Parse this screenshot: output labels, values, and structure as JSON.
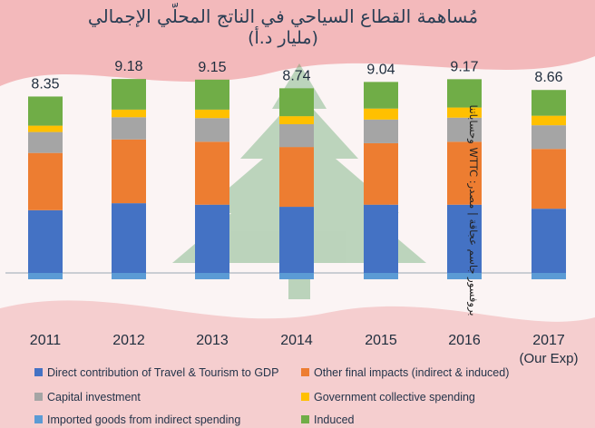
{
  "title_line1": "مُساهمة القطاع السياحي في الناتج المحلّي الإجمالي",
  "title_line2": "(مليار د.أ)",
  "credit": "بروفسور جاسم عجاقة | مصدر: WTTC وحساباتنا",
  "colors": {
    "direct": "#4472c4",
    "other": "#ed7d31",
    "capital": "#a5a5a5",
    "government": "#ffc000",
    "imported": "#5b9bd5",
    "induced": "#70ad47",
    "flag_red": "#e01f26",
    "cedar_green": "#2a8a3a"
  },
  "chart_data": {
    "type": "bar",
    "stacked": true,
    "categories": [
      "2011",
      "2012",
      "2013",
      "2014",
      "2015",
      "2016",
      "2017"
    ],
    "category_sublabels": [
      "",
      "",
      "",
      "",
      "",
      "",
      "(Our Exp)"
    ],
    "totals": [
      "8.35",
      "9.18",
      "9.15",
      "8.74",
      "9.04",
      "9.17",
      "8.66"
    ],
    "series": [
      {
        "key": "imported",
        "name": "Imported goods from indirect spending",
        "values": [
          -0.3,
          -0.3,
          -0.3,
          -0.3,
          -0.3,
          -0.3,
          -0.3
        ]
      },
      {
        "key": "direct",
        "name": "Direct contribution of Travel & Tourism to GDP",
        "values": [
          2.97,
          3.3,
          3.23,
          3.13,
          3.23,
          3.23,
          3.04
        ]
      },
      {
        "key": "other",
        "name": "Other final impacts (indirect & induced)",
        "values": [
          2.71,
          3.02,
          2.98,
          2.83,
          2.91,
          2.98,
          2.83
        ]
      },
      {
        "key": "capital",
        "name": "Capital investment",
        "values": [
          0.99,
          1.05,
          1.12,
          1.08,
          1.12,
          1.14,
          1.12
        ]
      },
      {
        "key": "government",
        "name": "Government collective spending",
        "values": [
          0.3,
          0.36,
          0.4,
          0.38,
          0.52,
          0.48,
          0.45
        ]
      },
      {
        "key": "induced",
        "name": "Induced",
        "values": [
          1.38,
          1.45,
          1.42,
          1.32,
          1.26,
          1.34,
          1.22
        ]
      }
    ],
    "ylim": [
      -0.5,
      10.5
    ],
    "grid": false,
    "legend_position": "bottom"
  }
}
